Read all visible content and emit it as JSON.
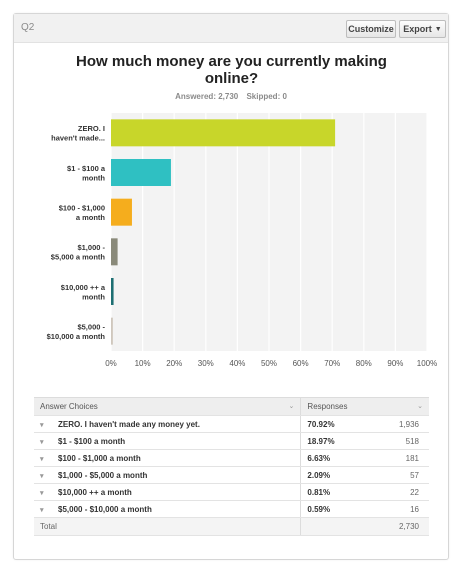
{
  "header": {
    "question_number": "Q2",
    "customize_label": "Customize",
    "export_label": "Export"
  },
  "question": {
    "title": "How much money are you currently making online?",
    "answered_label": "Answered: 2,730",
    "skipped_label": "Skipped: 0"
  },
  "colors": [
    "#c8d62a",
    "#2fc0c2",
    "#f5ad1d",
    "#8a8a7a",
    "#1d6f72",
    "#cfc7bd"
  ],
  "chart_data": {
    "type": "bar",
    "orientation": "horizontal",
    "categories": [
      [
        "ZERO. I",
        "haven't made..."
      ],
      [
        "$1 - $100 a",
        "month"
      ],
      [
        "$100 - $1,000",
        "a month"
      ],
      [
        "$1,000 -",
        "$5,000 a month"
      ],
      [
        "$10,000 ++ a",
        "month"
      ],
      [
        "$5,000 -",
        "$10,000 a month"
      ]
    ],
    "values": [
      70.92,
      18.97,
      6.63,
      2.09,
      0.81,
      0.59
    ],
    "xlim": [
      0,
      100
    ],
    "xticks": [
      "0%",
      "10%",
      "20%",
      "30%",
      "40%",
      "50%",
      "60%",
      "70%",
      "80%",
      "90%",
      "100%"
    ],
    "grid": true
  },
  "table": {
    "col_answer": "Answer Choices",
    "col_responses": "Responses",
    "rows": [
      {
        "label": "ZERO. I haven't made any money yet.",
        "percent": "70.92%",
        "count": "1,936"
      },
      {
        "label": "$1 - $100 a month",
        "percent": "18.97%",
        "count": "518"
      },
      {
        "label": "$100 - $1,000 a month",
        "percent": "6.63%",
        "count": "181"
      },
      {
        "label": "$1,000 - $5,000 a month",
        "percent": "2.09%",
        "count": "57"
      },
      {
        "label": "$10,000 ++ a month",
        "percent": "0.81%",
        "count": "22"
      },
      {
        "label": "$5,000 - $10,000 a month",
        "percent": "0.59%",
        "count": "16"
      }
    ],
    "total_label": "Total",
    "total_count": "2,730"
  }
}
